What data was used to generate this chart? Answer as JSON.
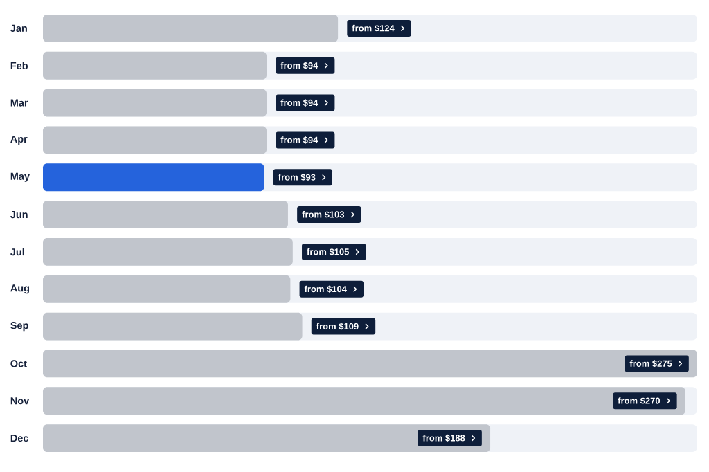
{
  "chart_data": {
    "type": "bar",
    "orientation": "horizontal",
    "categories": [
      "Jan",
      "Feb",
      "Mar",
      "Apr",
      "May",
      "Jun",
      "Jul",
      "Aug",
      "Sep",
      "Oct",
      "Nov",
      "Dec"
    ],
    "values": [
      124,
      94,
      94,
      94,
      93,
      103,
      105,
      104,
      109,
      275,
      270,
      188
    ],
    "colors": [
      "#c1c5cc",
      "#c1c5cc",
      "#c1c5cc",
      "#c1c5cc",
      "#2563dc",
      "#c1c5cc",
      "#c1c5cc",
      "#c1c5cc",
      "#c1c5cc",
      "#c1c5cc",
      "#c1c5cc",
      "#c1c5cc"
    ],
    "value_labels": [
      "from $124",
      "from $94",
      "from $94",
      "from $94",
      "from $93",
      "from $103",
      "from $105",
      "from $104",
      "from $109",
      "from $275",
      "from $270",
      "from $188"
    ],
    "xlim": [
      0,
      275
    ],
    "tick_labels": "y",
    "bands": [
      {
        "axis": "x",
        "from": 0,
        "to": 275,
        "color": "#eff2f7"
      }
    ]
  }
}
